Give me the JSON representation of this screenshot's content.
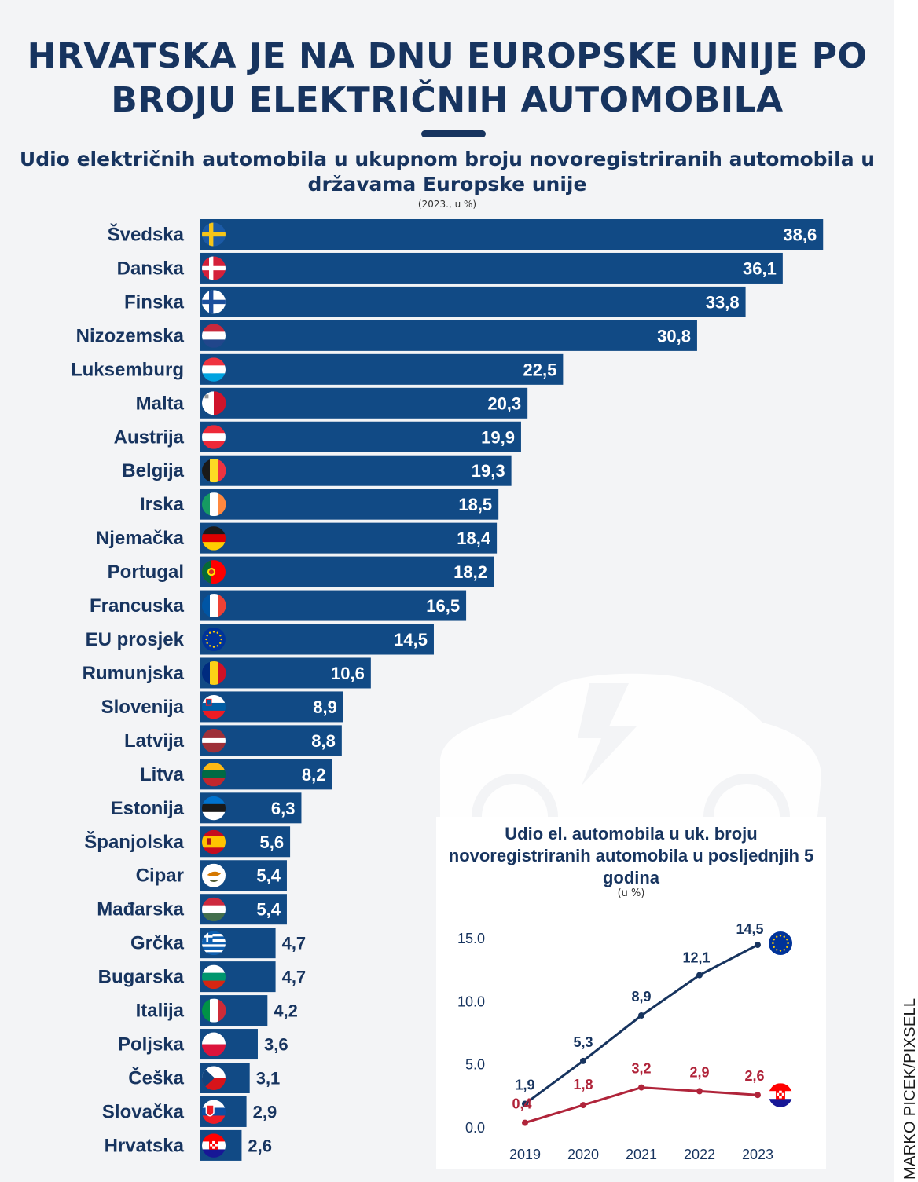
{
  "title": "HRVATSKA JE NA DNU EUROPSKE UNIJE PO BROJU ELEKTRIČNIH AUTOMOBILA",
  "subtitle": "Udio električnih automobila u ukupnom broju novoregistriranih automobila u državama Europske unije",
  "unit_note": "(2023., u %)",
  "credit": "MARKO PICEK/PIXSELL",
  "colors": {
    "bar": "#114a85",
    "title": "#17345f",
    "eu_line": "#17345f",
    "hr_line": "#b0243a"
  },
  "chart_data": [
    {
      "type": "bar",
      "orientation": "horizontal",
      "categories": [
        "Švedska",
        "Danska",
        "Finska",
        "Nizozemska",
        "Luksemburg",
        "Malta",
        "Austrija",
        "Belgija",
        "Irska",
        "Njemačka",
        "Portugal",
        "Francuska",
        "EU prosjek",
        "Rumunjska",
        "Slovenija",
        "Latvija",
        "Litva",
        "Estonija",
        "Španjolska",
        "Cipar",
        "Mađarska",
        "Grčka",
        "Bugarska",
        "Italija",
        "Poljska",
        "Češka",
        "Slovačka",
        "Hrvatska"
      ],
      "values": [
        38.6,
        36.1,
        33.8,
        30.8,
        22.5,
        20.3,
        19.9,
        19.3,
        18.5,
        18.4,
        18.2,
        16.5,
        14.5,
        10.6,
        8.9,
        8.8,
        8.2,
        6.3,
        5.6,
        5.4,
        5.4,
        4.7,
        4.7,
        4.2,
        3.6,
        3.1,
        2.9,
        2.6
      ],
      "value_labels": [
        "38,6",
        "36,1",
        "33,8",
        "30,8",
        "22,5",
        "20,3",
        "19,9",
        "19,3",
        "18,5",
        "18,4",
        "18,2",
        "16,5",
        "14,5",
        "10,6",
        "8,9",
        "8,8",
        "8,2",
        "6,3",
        "5,6",
        "5,4",
        "5,4",
        "4,7",
        "4,7",
        "4,2",
        "3,6",
        "3,1",
        "2,9",
        "2,6"
      ],
      "flag_icons": [
        "sweden-flag-icon",
        "denmark-flag-icon",
        "finland-flag-icon",
        "netherlands-flag-icon",
        "luxembourg-flag-icon",
        "malta-flag-icon",
        "austria-flag-icon",
        "belgium-flag-icon",
        "ireland-flag-icon",
        "germany-flag-icon",
        "portugal-flag-icon",
        "france-flag-icon",
        "eu-flag-icon",
        "romania-flag-icon",
        "slovenia-flag-icon",
        "latvia-flag-icon",
        "lithuania-flag-icon",
        "estonia-flag-icon",
        "spain-flag-icon",
        "cyprus-flag-icon",
        "hungary-flag-icon",
        "greece-flag-icon",
        "bulgaria-flag-icon",
        "italy-flag-icon",
        "poland-flag-icon",
        "czechia-flag-icon",
        "slovakia-flag-icon",
        "croatia-flag-icon"
      ],
      "highlight": "Hrvatska"
    },
    {
      "type": "line",
      "title": "Udio el. automobila u uk. broju novoregistriranih automobila u posljednjih 5 godina",
      "unit_note": "(u %)",
      "x": [
        "2019",
        "2020",
        "2021",
        "2022",
        "2023"
      ],
      "ylim": [
        0,
        15
      ],
      "yticks": [
        "0.0",
        "5.0",
        "10.0",
        "15.0"
      ],
      "grid": false,
      "series": [
        {
          "icon": "eu-flag-icon",
          "color": "#17345f",
          "values": [
            1.9,
            5.3,
            8.9,
            12.1,
            14.5
          ],
          "labels": [
            "1,9",
            "5,3",
            "8,9",
            "12,1",
            "14,5"
          ]
        },
        {
          "icon": "croatia-flag-icon",
          "color": "#b0243a",
          "values": [
            0.4,
            1.8,
            3.2,
            2.9,
            2.6
          ],
          "labels": [
            "0,4",
            "1,8",
            "3,2",
            "2,9",
            "2,6"
          ]
        }
      ]
    }
  ]
}
